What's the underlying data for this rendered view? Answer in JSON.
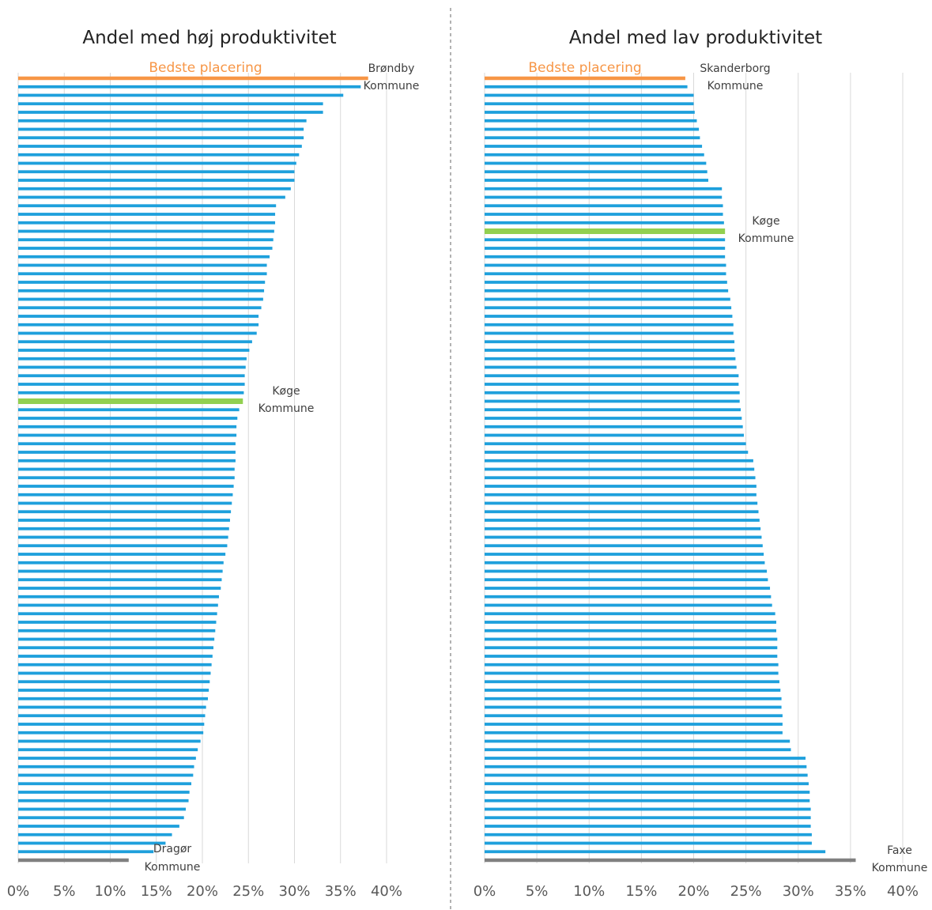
{
  "chart_data": [
    {
      "type": "bar",
      "orientation": "horizontal",
      "title": "Andel med høj produktivitet",
      "xlabel": "",
      "ylabel": "",
      "xlim": [
        0,
        40
      ],
      "x_ticks": [
        "0%",
        "5%",
        "10%",
        "15%",
        "20%",
        "25%",
        "30%",
        "35%",
        "40%"
      ],
      "grid": true,
      "colors": {
        "default": "#1ea0dc",
        "best": "#f79646",
        "koege": "#92d050",
        "worst": "#808080"
      },
      "best_label": "Bedste placering",
      "annotations": {
        "best": [
          "Brøndby",
          "Kommune"
        ],
        "koege": [
          "Køge",
          "Kommune"
        ],
        "worst": [
          "Dragør",
          "Kommune"
        ]
      },
      "highlight": {
        "best_index": 0,
        "koege_index": 38,
        "worst_index": 92
      },
      "values": [
        38.0,
        37.2,
        35.3,
        33.1,
        33.1,
        31.3,
        31.0,
        31.0,
        30.8,
        30.5,
        30.2,
        30.0,
        30.0,
        29.6,
        29.0,
        28.0,
        27.9,
        27.9,
        27.8,
        27.7,
        27.6,
        27.3,
        27.0,
        27.0,
        26.8,
        26.7,
        26.6,
        26.4,
        26.1,
        26.1,
        25.9,
        25.4,
        25.1,
        24.8,
        24.7,
        24.6,
        24.6,
        24.5,
        24.4,
        24.0,
        23.8,
        23.7,
        23.7,
        23.6,
        23.6,
        23.6,
        23.5,
        23.5,
        23.4,
        23.3,
        23.2,
        23.1,
        23.0,
        22.9,
        22.8,
        22.7,
        22.5,
        22.3,
        22.2,
        22.1,
        22.0,
        21.8,
        21.7,
        21.6,
        21.5,
        21.4,
        21.3,
        21.2,
        21.1,
        21.0,
        20.9,
        20.8,
        20.7,
        20.6,
        20.4,
        20.3,
        20.2,
        20.1,
        19.8,
        19.5,
        19.3,
        19.1,
        19.0,
        18.8,
        18.6,
        18.5,
        18.2,
        18.0,
        17.5,
        16.7,
        16.0,
        14.7,
        12.0
      ]
    },
    {
      "type": "bar",
      "orientation": "horizontal",
      "title": "Andel med lav produktivitet",
      "xlabel": "",
      "ylabel": "",
      "xlim": [
        0,
        40
      ],
      "x_ticks": [
        "0%",
        "5%",
        "10%",
        "15%",
        "20%",
        "25%",
        "30%",
        "35%",
        "40%"
      ],
      "grid": true,
      "colors": {
        "default": "#1ea0dc",
        "best": "#f79646",
        "koege": "#92d050",
        "worst": "#808080"
      },
      "best_label": "Bedste placering",
      "annotations": {
        "best": [
          "Skanderborg",
          "Kommune"
        ],
        "koege": [
          "Køge",
          "Kommune"
        ],
        "worst": [
          "Faxe",
          "Kommune"
        ]
      },
      "highlight": {
        "best_index": 0,
        "koege_index": 18,
        "worst_index": 92
      },
      "values": [
        19.2,
        19.4,
        20.0,
        20.0,
        20.1,
        20.3,
        20.5,
        20.6,
        20.8,
        21.0,
        21.2,
        21.3,
        21.4,
        22.7,
        22.7,
        22.8,
        22.8,
        22.9,
        23.0,
        23.0,
        23.0,
        23.0,
        23.1,
        23.1,
        23.2,
        23.3,
        23.5,
        23.6,
        23.7,
        23.8,
        23.8,
        23.9,
        23.9,
        24.0,
        24.1,
        24.3,
        24.3,
        24.4,
        24.4,
        24.5,
        24.6,
        24.7,
        24.8,
        25.0,
        25.2,
        25.7,
        25.8,
        25.9,
        26.0,
        26.0,
        26.1,
        26.2,
        26.3,
        26.4,
        26.5,
        26.6,
        26.7,
        26.8,
        27.0,
        27.1,
        27.3,
        27.4,
        27.5,
        27.8,
        27.9,
        27.9,
        28.0,
        28.0,
        28.0,
        28.1,
        28.1,
        28.2,
        28.3,
        28.4,
        28.4,
        28.5,
        28.5,
        28.5,
        29.2,
        29.3,
        30.7,
        30.8,
        30.9,
        31.0,
        31.1,
        31.1,
        31.2,
        31.2,
        31.2,
        31.3,
        31.3,
        32.6,
        35.5
      ]
    }
  ]
}
